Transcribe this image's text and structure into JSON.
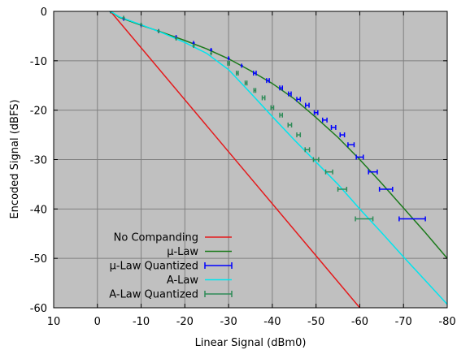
{
  "chart_data": {
    "type": "line",
    "xlabel": "Linear  Signal (dBm0)",
    "ylabel": "Encoded Signal (dBFS)",
    "xlim": [
      10,
      -80
    ],
    "ylim": [
      -60,
      0
    ],
    "x_ticks": [
      10,
      0,
      -10,
      -20,
      -30,
      -40,
      -50,
      -60,
      -70,
      -80
    ],
    "y_ticks": [
      0,
      -10,
      -20,
      -30,
      -40,
      -50,
      -60
    ],
    "grid": true,
    "legend_position": "bottom-left",
    "background_color": "#c0c0c0",
    "series": [
      {
        "name": "No Companding",
        "style": "line",
        "color": "#e41a1c",
        "x": [
          -3,
          -60
        ],
        "y": [
          0,
          -60
        ]
      },
      {
        "name": "μ-Law",
        "style": "line",
        "color": "#1b7a1b",
        "x": [
          -3,
          -5,
          -10,
          -15,
          -20,
          -25,
          -30,
          -35,
          -40,
          -45,
          -50,
          -55,
          -60,
          -65,
          -70,
          -75,
          -80
        ],
        "y": [
          0,
          -1.2,
          -2.8,
          -4.3,
          -5.9,
          -7.6,
          -9.6,
          -12.0,
          -14.6,
          -17.7,
          -21.5,
          -25.5,
          -30.0,
          -34.8,
          -39.8,
          -44.8,
          -50.0
        ]
      },
      {
        "name": "μ-Law Quantized",
        "style": "errorbar",
        "color": "#0000ff",
        "x": [
          -3,
          -6,
          -10,
          -14,
          -18,
          -22,
          -26,
          -30,
          -33,
          -36,
          -39,
          -42,
          -44,
          -46,
          -48,
          -50,
          -52,
          -54,
          -56,
          -58,
          -60,
          -63,
          -66,
          -72
        ],
        "y": [
          0,
          -1.5,
          -2.8,
          -4.0,
          -5.2,
          -6.4,
          -7.8,
          -9.5,
          -11.0,
          -12.5,
          -14.0,
          -15.5,
          -16.7,
          -17.8,
          -19.0,
          -20.5,
          -22.0,
          -23.5,
          -25.0,
          -27.0,
          -29.5,
          -32.5,
          -36.0,
          -42.0
        ],
        "x_err": [
          0,
          0,
          0,
          0,
          0,
          0,
          0,
          0,
          0,
          0.3,
          0.3,
          0.3,
          0.3,
          0.4,
          0.4,
          0.4,
          0.5,
          0.5,
          0.5,
          0.7,
          0.8,
          1.0,
          1.5,
          3.0
        ]
      },
      {
        "name": "A-Law",
        "style": "line",
        "color": "#00e5ee",
        "x": [
          -3,
          -5,
          -10,
          -15,
          -20,
          -25,
          -30,
          -35,
          -40,
          -45,
          -50,
          -55,
          -60,
          -65,
          -70,
          -75,
          -80
        ],
        "y": [
          0,
          -1.1,
          -2.7,
          -4.4,
          -6.3,
          -8.5,
          -11.8,
          -16.5,
          -21.3,
          -26.0,
          -30.5,
          -35.0,
          -40.0,
          -44.8,
          -49.7,
          -54.5,
          -59.3
        ]
      },
      {
        "name": "A-Law Quantized",
        "style": "errorbar",
        "color": "#2e8b57",
        "x": [
          -3,
          -6,
          -10,
          -14,
          -18,
          -22,
          -26,
          -30,
          -32,
          -34,
          -36,
          -38,
          -40,
          -42,
          -44,
          -46,
          -48,
          -50,
          -53,
          -56,
          -61
        ],
        "y": [
          0,
          -1.3,
          -2.7,
          -4.0,
          -5.5,
          -7.0,
          -8.5,
          -10.5,
          -12.5,
          -14.5,
          -16.0,
          -17.5,
          -19.5,
          -21.0,
          -23.0,
          -25.0,
          -28.0,
          -30.0,
          -32.5,
          -36.0,
          -42.0
        ],
        "x_err": [
          0,
          0,
          0,
          0,
          0,
          0,
          0,
          0.2,
          0.2,
          0.2,
          0.2,
          0.3,
          0.3,
          0.3,
          0.4,
          0.4,
          0.5,
          0.6,
          0.8,
          1.0,
          2.0
        ]
      }
    ]
  }
}
